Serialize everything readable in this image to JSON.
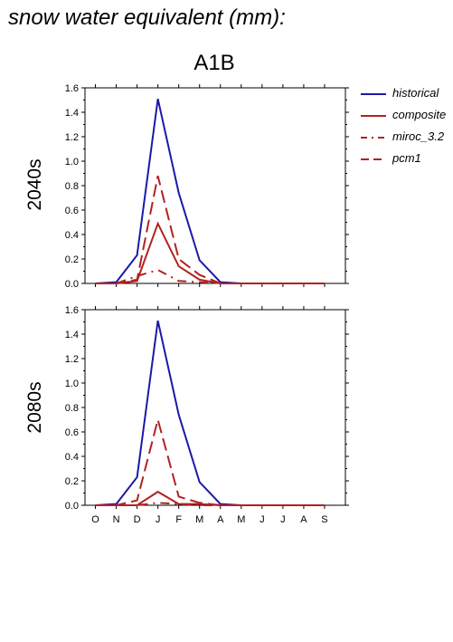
{
  "page_title": "snow water equivalent (mm):",
  "scenario": "A1B",
  "colors": {
    "historical": "#1a1aa8",
    "composite": "#b22222",
    "miroc_3.2": "#b22222",
    "pcm1": "#b22222"
  },
  "legend": [
    {
      "name": "historical",
      "style": "solid"
    },
    {
      "name": "composite",
      "style": "solid"
    },
    {
      "name": "miroc_3.2",
      "style": "dashdot"
    },
    {
      "name": "pcm1",
      "style": "dashed"
    }
  ],
  "chart_data": [
    {
      "type": "line",
      "panel_label": "2040s",
      "categories": [
        "O",
        "N",
        "D",
        "J",
        "F",
        "M",
        "A",
        "M",
        "J",
        "J",
        "A",
        "S"
      ],
      "ylim": [
        0,
        1.6
      ],
      "yticks": [
        "0.0",
        "0.2",
        "0.4",
        "0.6",
        "0.8",
        "1.0",
        "1.2",
        "1.4",
        "1.6"
      ],
      "show_xticklabels": false,
      "series": [
        {
          "name": "historical",
          "values": [
            0.0,
            0.01,
            0.23,
            1.51,
            0.74,
            0.19,
            0.01,
            0.0,
            0.0,
            0.0,
            0.0,
            0.0
          ]
        },
        {
          "name": "composite",
          "values": [
            0.0,
            0.0,
            0.02,
            0.49,
            0.14,
            0.03,
            0.0,
            0.0,
            0.0,
            0.0,
            0.0,
            0.0
          ]
        },
        {
          "name": "miroc_3.2",
          "values": [
            0.0,
            0.0,
            0.06,
            0.11,
            0.02,
            0.01,
            0.0,
            0.0,
            0.0,
            0.0,
            0.0,
            0.0
          ]
        },
        {
          "name": "pcm1",
          "values": [
            0.0,
            0.0,
            0.03,
            0.88,
            0.2,
            0.07,
            0.0,
            0.0,
            0.0,
            0.0,
            0.0,
            0.0
          ]
        }
      ]
    },
    {
      "type": "line",
      "panel_label": "2080s",
      "categories": [
        "O",
        "N",
        "D",
        "J",
        "F",
        "M",
        "A",
        "M",
        "J",
        "J",
        "A",
        "S"
      ],
      "ylim": [
        0,
        1.6
      ],
      "yticks": [
        "0.0",
        "0.2",
        "0.4",
        "0.6",
        "0.8",
        "1.0",
        "1.2",
        "1.4",
        "1.6"
      ],
      "show_xticklabels": true,
      "series": [
        {
          "name": "historical",
          "values": [
            0.0,
            0.01,
            0.23,
            1.51,
            0.74,
            0.19,
            0.01,
            0.0,
            0.0,
            0.0,
            0.0,
            0.0
          ]
        },
        {
          "name": "composite",
          "values": [
            0.0,
            0.0,
            0.0,
            0.11,
            0.01,
            0.01,
            0.0,
            0.0,
            0.0,
            0.0,
            0.0,
            0.0
          ]
        },
        {
          "name": "miroc_3.2",
          "values": [
            0.0,
            0.0,
            0.0,
            0.02,
            0.01,
            0.0,
            0.0,
            0.0,
            0.0,
            0.0,
            0.0,
            0.0
          ]
        },
        {
          "name": "pcm1",
          "values": [
            0.0,
            0.0,
            0.04,
            0.7,
            0.07,
            0.02,
            0.0,
            0.0,
            0.0,
            0.0,
            0.0,
            0.0
          ]
        }
      ]
    }
  ]
}
